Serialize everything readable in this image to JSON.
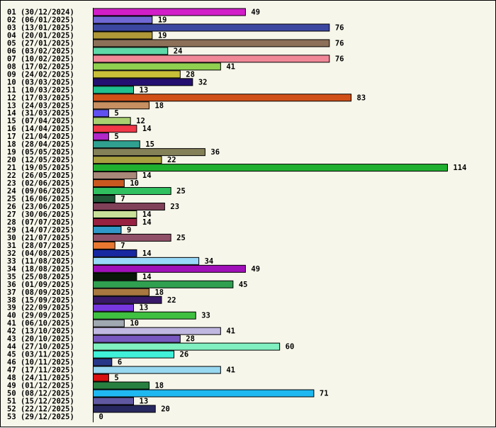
{
  "chart_data": {
    "type": "bar",
    "orientation": "horizontal",
    "categories": [
      "01 (30/12/2024)",
      "02 (06/01/2025)",
      "03 (13/01/2025)",
      "04 (20/01/2025)",
      "05 (27/01/2025)",
      "06 (03/02/2025)",
      "07 (10/02/2025)",
      "08 (17/02/2025)",
      "09 (24/02/2025)",
      "10 (03/03/2025)",
      "11 (10/03/2025)",
      "12 (17/03/2025)",
      "13 (24/03/2025)",
      "14 (31/03/2025)",
      "15 (07/04/2025)",
      "16 (14/04/2025)",
      "17 (21/04/2025)",
      "18 (28/04/2025)",
      "19 (05/05/2025)",
      "20 (12/05/2025)",
      "21 (19/05/2025)",
      "22 (26/05/2025)",
      "23 (02/06/2025)",
      "24 (09/06/2025)",
      "25 (16/06/2025)",
      "26 (23/06/2025)",
      "27 (30/06/2025)",
      "28 (07/07/2025)",
      "29 (14/07/2025)",
      "30 (21/07/2025)",
      "31 (28/07/2025)",
      "32 (04/08/2025)",
      "33 (11/08/2025)",
      "34 (18/08/2025)",
      "35 (25/08/2025)",
      "36 (01/09/2025)",
      "37 (08/09/2025)",
      "38 (15/09/2025)",
      "39 (22/09/2025)",
      "40 (29/09/2025)",
      "41 (06/10/2025)",
      "42 (13/10/2025)",
      "43 (20/10/2025)",
      "44 (27/10/2025)",
      "45 (03/11/2025)",
      "46 (10/11/2025)",
      "47 (17/11/2025)",
      "48 (24/11/2025)",
      "49 (01/12/2025)",
      "50 (08/12/2025)",
      "51 (15/12/2025)",
      "52 (22/12/2025)",
      "53 (29/12/2025)"
    ],
    "values": [
      49,
      19,
      76,
      19,
      76,
      24,
      76,
      41,
      28,
      32,
      13,
      83,
      18,
      5,
      12,
      14,
      5,
      15,
      36,
      22,
      114,
      14,
      10,
      25,
      7,
      23,
      14,
      14,
      9,
      25,
      7,
      14,
      34,
      49,
      14,
      45,
      18,
      22,
      13,
      33,
      10,
      41,
      28,
      60,
      26,
      6,
      41,
      5,
      18,
      71,
      13,
      20,
      0
    ],
    "colors": [
      "#d21ec8",
      "#7068d4",
      "#3c48a0",
      "#b09838",
      "#8c7058",
      "#5ed8a8",
      "#f08898",
      "#90d050",
      "#c8c038",
      "#241070",
      "#20c090",
      "#d05018",
      "#c89060",
      "#6050f0",
      "#a8d070",
      "#f03848",
      "#b028c8",
      "#30a090",
      "#848058",
      "#a8a040",
      "#20b030",
      "#a88878",
      "#c85820",
      "#30c060",
      "#205838",
      "#804058",
      "#c8e098",
      "#982040",
      "#3098c8",
      "#905068",
      "#e87830",
      "#1828a0",
      "#98d8f8",
      "#a010b8",
      "#081808",
      "#30a050",
      "#a87840",
      "#381868",
      "#7838e0",
      "#40c040",
      "#a0a8b0",
      "#c0b8e0",
      "#7858c0",
      "#80f0c0",
      "#40f0d8",
      "#283888",
      "#98d8f0",
      "#d81010",
      "#288040",
      "#20b8f0",
      "#6058a0",
      "#282860",
      "#a8c8a0"
    ],
    "xlim": [
      0,
      114
    ],
    "grid": false,
    "legend": "none",
    "title": "",
    "xlabel": "",
    "ylabel": ""
  }
}
